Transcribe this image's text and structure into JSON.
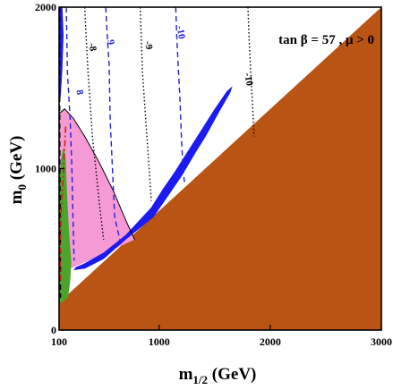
{
  "chart_data": {
    "type": "contour",
    "xlabel_main": "m",
    "xlabel_sub": "1/2",
    "xlabel_unit": " (GeV)",
    "ylabel_main": "m",
    "ylabel_sub": "0",
    "ylabel_unit": " (GeV)",
    "annotation": "tan β = 57 ,  μ > 0",
    "xlim": [
      100,
      3000
    ],
    "ylim": [
      0,
      2000
    ],
    "x_ticks": [
      {
        "value": 100,
        "label": "100"
      },
      {
        "value": 1000,
        "label": "1000"
      },
      {
        "value": 2000,
        "label": "2000"
      },
      {
        "value": 3000,
        "label": "3000"
      }
    ],
    "y_ticks": [
      {
        "value": 0,
        "label": "0"
      },
      {
        "value": 1000,
        "label": "1000"
      },
      {
        "value": 2000,
        "label": "2000"
      }
    ],
    "colors": {
      "excluded": "#b95413",
      "bsgamma": "#4aa52a",
      "gmu": "#f59ad5",
      "relic": "#1b1bf0",
      "higgs": "#d11c1c",
      "contour_black": "#000000"
    },
    "regions": [
      {
        "name": "stau-lsp-excluded",
        "color": "#b95413",
        "points": [
          [
            100,
            170
          ],
          [
            3000,
            2000
          ],
          [
            3000,
            0
          ],
          [
            100,
            0
          ]
        ]
      },
      {
        "name": "gmu-2-favored",
        "color": "#f59ad5",
        "points": [
          [
            100,
            1340
          ],
          [
            150,
            1370
          ],
          [
            230,
            1310
          ],
          [
            330,
            1200
          ],
          [
            460,
            1040
          ],
          [
            590,
            860
          ],
          [
            700,
            680
          ],
          [
            780,
            560
          ],
          [
            330,
            420
          ],
          [
            200,
            380
          ],
          [
            130,
            380
          ],
          [
            110,
            600
          ],
          [
            105,
            1000
          ]
        ]
      },
      {
        "name": "bsgamma-excluded",
        "color": "#4aa52a",
        "points": [
          [
            100,
            160
          ],
          [
            180,
            200
          ],
          [
            200,
            300
          ],
          [
            210,
            420
          ],
          [
            190,
            600
          ],
          [
            175,
            800
          ],
          [
            160,
            1050
          ],
          [
            145,
            1130
          ],
          [
            130,
            1110
          ],
          [
            110,
            1000
          ],
          [
            100,
            900
          ]
        ]
      },
      {
        "name": "relic-strip-funnel",
        "color": "#1b1bf0",
        "points": [
          [
            330,
            380
          ],
          [
            500,
            440
          ],
          [
            700,
            560
          ],
          [
            950,
            700
          ],
          [
            1080,
            830
          ],
          [
            1200,
            950
          ],
          [
            1330,
            1100
          ],
          [
            1420,
            1200
          ],
          [
            1540,
            1350
          ],
          [
            1640,
            1470
          ],
          [
            1660,
            1510
          ],
          [
            1610,
            1480
          ],
          [
            1490,
            1360
          ],
          [
            1380,
            1240
          ],
          [
            1260,
            1110
          ],
          [
            1140,
            980
          ],
          [
            1030,
            870
          ],
          [
            930,
            760
          ],
          [
            700,
            590
          ],
          [
            500,
            480
          ],
          [
            320,
            410
          ],
          [
            250,
            390
          ],
          [
            230,
            370
          ],
          [
            270,
            375
          ]
        ]
      },
      {
        "name": "relic-strip-upper",
        "color": "#1b1bf0",
        "points": [
          [
            100,
            2000
          ],
          [
            130,
            2000
          ],
          [
            140,
            1830
          ],
          [
            130,
            1620
          ],
          [
            115,
            1450
          ],
          [
            100,
            1400
          ]
        ]
      }
    ],
    "contours": [
      {
        "name": "chargino-bound",
        "style": "dashed",
        "color": "#000000",
        "width": 1.8,
        "points": [
          [
            104,
            2000
          ],
          [
            104,
            1500
          ],
          [
            106,
            1000
          ],
          [
            110,
            500
          ],
          [
            112,
            200
          ]
        ]
      },
      {
        "name": "higgs-bound",
        "style": "dashdot",
        "color": "#d11c1c",
        "width": 1.6,
        "points": [
          [
            160,
            1260
          ],
          [
            140,
            1000
          ],
          [
            120,
            760
          ],
          [
            110,
            500
          ],
          [
            112,
            300
          ]
        ]
      },
      {
        "name": "gmu-boundary",
        "style": "solid",
        "color": "#000000",
        "width": 1.0,
        "points": [
          [
            100,
            1340
          ],
          [
            150,
            1370
          ],
          [
            230,
            1310
          ],
          [
            330,
            1200
          ],
          [
            460,
            1040
          ],
          [
            590,
            860
          ],
          [
            700,
            680
          ],
          [
            780,
            560
          ]
        ]
      },
      {
        "name": "blue-dash-8",
        "style": "dashed",
        "color": "#2222dd",
        "width": 1.4,
        "points": [
          [
            165,
            2000
          ],
          [
            170,
            1800
          ],
          [
            175,
            1600
          ],
          [
            200,
            1300
          ],
          [
            215,
            1000
          ],
          [
            225,
            700
          ],
          [
            235,
            430
          ]
        ]
      },
      {
        "name": "blue-dash-9",
        "style": "dashed",
        "color": "#2222dd",
        "width": 1.4,
        "points": [
          [
            520,
            2000
          ],
          [
            535,
            1800
          ],
          [
            550,
            1650
          ],
          [
            560,
            1300
          ],
          [
            580,
            1000
          ],
          [
            600,
            700
          ],
          [
            660,
            520
          ]
        ]
      },
      {
        "name": "blue-dash-10",
        "style": "dashed",
        "color": "#2222dd",
        "width": 1.4,
        "points": [
          [
            1150,
            2000
          ],
          [
            1160,
            1800
          ],
          [
            1175,
            1600
          ],
          [
            1190,
            1400
          ],
          [
            1200,
            1200
          ],
          [
            1215,
            1000
          ],
          [
            1230,
            900
          ]
        ]
      },
      {
        "name": "black-dot-8",
        "style": "dotted",
        "color": "#000000",
        "width": 1.4,
        "points": [
          [
            330,
            2000
          ],
          [
            345,
            1800
          ],
          [
            360,
            1600
          ],
          [
            380,
            1400
          ],
          [
            400,
            1200
          ],
          [
            430,
            1000
          ],
          [
            460,
            800
          ],
          [
            500,
            560
          ]
        ]
      },
      {
        "name": "black-dot-9",
        "style": "dotted",
        "color": "#000000",
        "width": 1.4,
        "points": [
          [
            830,
            2000
          ],
          [
            840,
            1800
          ],
          [
            850,
            1600
          ],
          [
            870,
            1400
          ],
          [
            890,
            1200
          ],
          [
            910,
            1000
          ],
          [
            930,
            800
          ]
        ]
      },
      {
        "name": "black-dot-10",
        "style": "dotted",
        "color": "#000000",
        "width": 1.4,
        "points": [
          [
            1800,
            2000
          ],
          [
            1810,
            1800
          ],
          [
            1825,
            1600
          ],
          [
            1840,
            1400
          ],
          [
            1855,
            1200
          ]
        ]
      }
    ],
    "contour_labels": [
      {
        "text": "8",
        "color": "#2222dd",
        "x": 260,
        "y": 1470
      },
      {
        "text": "9",
        "color": "#2222dd",
        "x": 540,
        "y": 1780
      },
      {
        "text": "-10",
        "color": "#2222dd",
        "x": 1170,
        "y": 1840
      },
      {
        "text": "-8",
        "color": "#000000",
        "x": 375,
        "y": 1750
      },
      {
        "text": "-9",
        "color": "#000000",
        "x": 880,
        "y": 1760
      },
      {
        "text": "-10",
        "color": "#000000",
        "x": 1780,
        "y": 1550
      }
    ]
  }
}
